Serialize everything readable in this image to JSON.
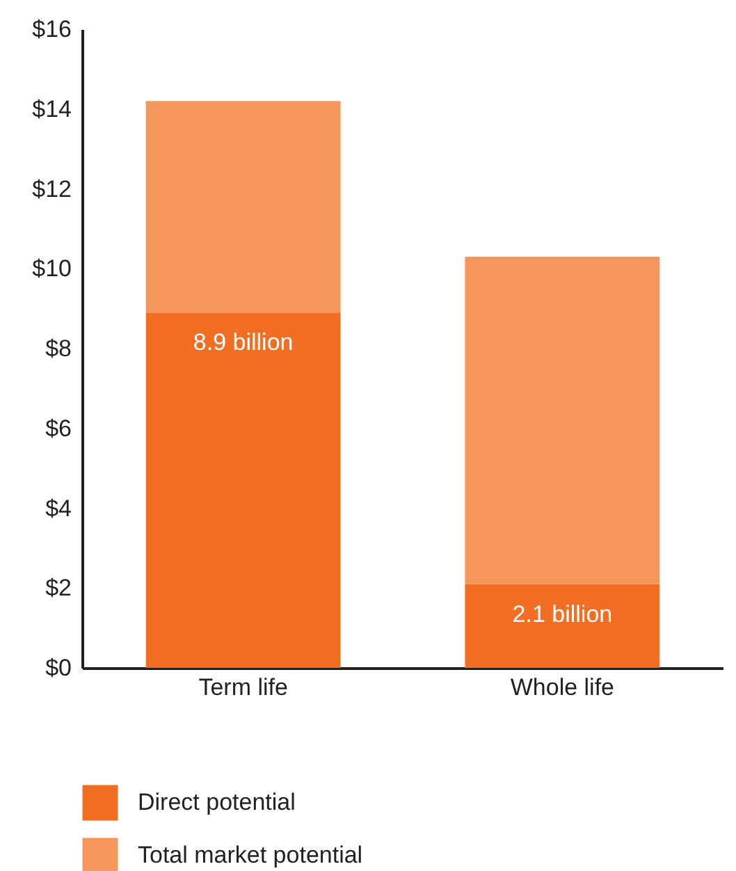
{
  "chart_data": {
    "type": "bar",
    "stacked": true,
    "categories": [
      "Term life",
      "Whole life"
    ],
    "series": [
      {
        "name": "Direct potential",
        "color": "#f26e23",
        "values": [
          8.9,
          2.1
        ],
        "value_labels": [
          "8.9 billion",
          "2.1 billion"
        ]
      },
      {
        "name": "Total market potential",
        "color": "#f5965b",
        "values": [
          5.3,
          8.2
        ]
      }
    ],
    "ylim": [
      0,
      16
    ],
    "yticks": [
      {
        "value": 0,
        "label": "$0"
      },
      {
        "value": 2,
        "label": "$2"
      },
      {
        "value": 4,
        "label": "$4"
      },
      {
        "value": 6,
        "label": "$6"
      },
      {
        "value": 8,
        "label": "$8"
      },
      {
        "value": 10,
        "label": "$10"
      },
      {
        "value": 12,
        "label": "$12"
      },
      {
        "value": 14,
        "label": "$14"
      },
      {
        "value": 16,
        "label": "$16"
      }
    ],
    "grid": false,
    "legend": "bottom left"
  }
}
